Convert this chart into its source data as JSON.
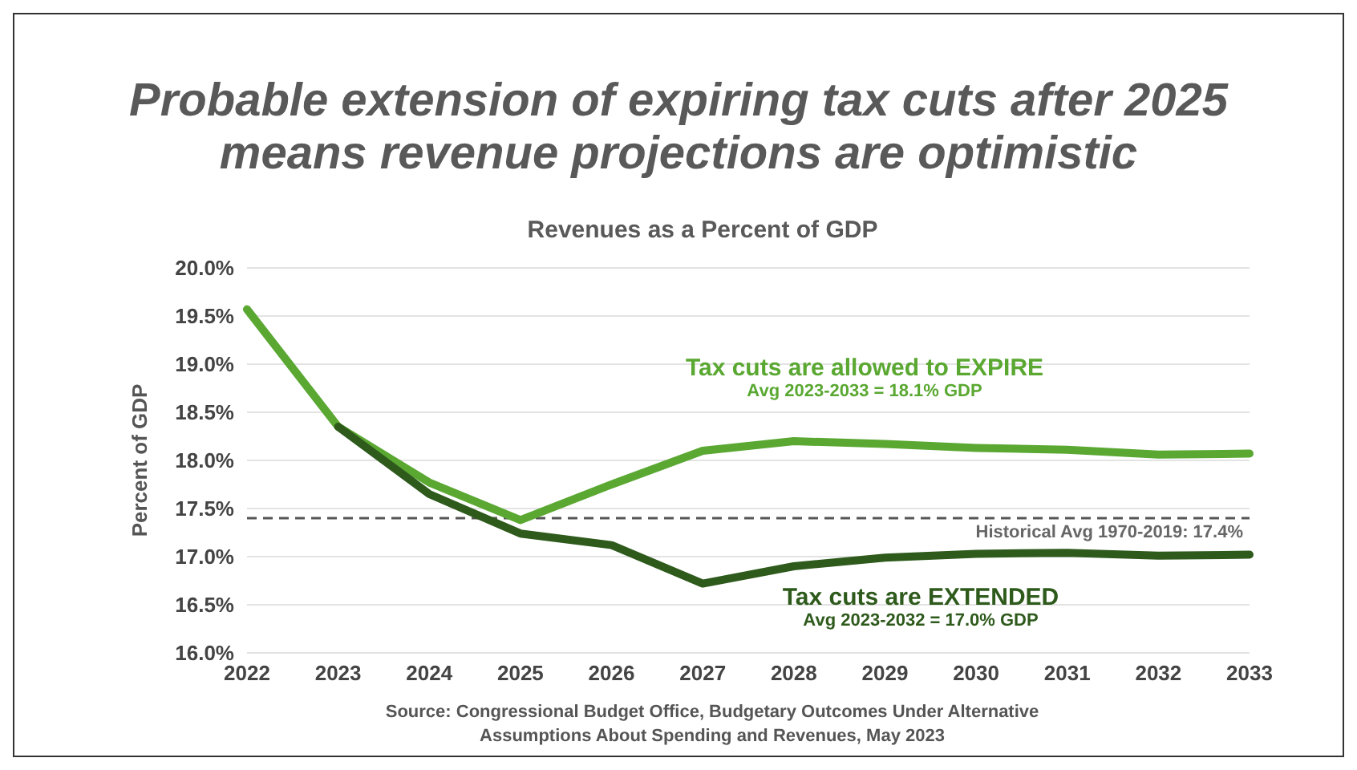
{
  "chart_data": {
    "type": "line",
    "title": "Probable extension of expiring tax cuts after 2025 means revenue projections are optimistic",
    "subtitle": "Revenues as a Percent of GDP",
    "ylabel": "Percent of GDP",
    "categories": [
      "2022",
      "2023",
      "2024",
      "2025",
      "2026",
      "2027",
      "2028",
      "2029",
      "2030",
      "2031",
      "2032",
      "2033"
    ],
    "series": [
      {
        "name": "Tax cuts are allowed to EXPIRE",
        "color": "#5aa832",
        "values": [
          19.57,
          18.35,
          17.77,
          17.38,
          17.75,
          18.1,
          18.2,
          18.17,
          18.13,
          18.11,
          18.06,
          18.07
        ]
      },
      {
        "name": "Tax cuts are EXTENDED",
        "color": "#2e5a1c",
        "values": [
          null,
          18.35,
          17.65,
          17.24,
          17.12,
          16.72,
          16.9,
          16.99,
          17.03,
          17.04,
          17.01,
          17.02
        ]
      }
    ],
    "ylim": [
      16,
      20
    ],
    "yticks": [
      {
        "value": 16,
        "label": "16.0%"
      },
      {
        "value": 16.5,
        "label": "16.5%"
      },
      {
        "value": 17,
        "label": "17.0%"
      },
      {
        "value": 17.5,
        "label": "17.5%"
      },
      {
        "value": 18,
        "label": "18.0%"
      },
      {
        "value": 18.5,
        "label": "18.5%"
      },
      {
        "value": 19,
        "label": "19.0%"
      },
      {
        "value": 19.5,
        "label": "19.5%"
      },
      {
        "value": 20,
        "label": "20.0%"
      }
    ],
    "grid": "y",
    "marker": "none",
    "line_style": "solid",
    "legend": false,
    "ref_lines": [
      {
        "axis": "y",
        "value": 17.4,
        "label": "Historical Avg 1970-2019: 17.4%",
        "color": "#555555",
        "line_style": "dashed"
      }
    ],
    "annotations": [
      "Avg 2023-2033 = 18.1% GDP",
      "Avg 2023-2032 = 17.0% GDP",
      "Source: Congressional Budget Office, Budgetary Outcomes Under Alternative Assumptions About Spending and Revenues, May 2023"
    ]
  }
}
